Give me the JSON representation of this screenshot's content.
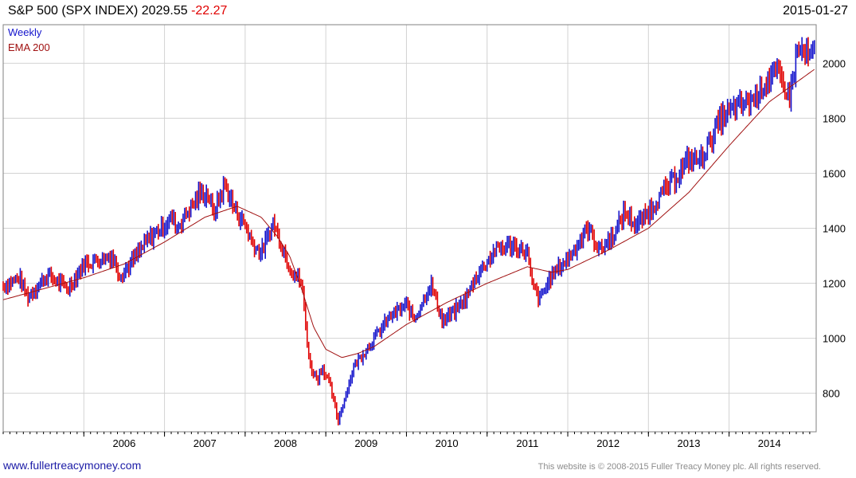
{
  "header": {
    "title": "S&P 500 (SPX INDEX)",
    "last": "2029.55",
    "change": "-22.27",
    "date": "2015-01-27"
  },
  "footer": {
    "site": "www.fullertreacymoney.com",
    "copyright": "This website is © 2008-2015 Fuller Treacy Money plc. All rights reserved."
  },
  "colors": {
    "up": "#1414cc",
    "down": "#e00000",
    "ema": "#a01010",
    "grid": "#d2d2d2",
    "frame": "#808080"
  },
  "chart_data": {
    "type": "line",
    "legend": [
      "Weekly",
      "EMA 200"
    ],
    "legend_placement": "top-left",
    "grid": true,
    "y_axis_side": "right",
    "ylim": [
      660,
      2140
    ],
    "y_ticks": [
      800,
      1000,
      1200,
      1400,
      1600,
      1800,
      2000
    ],
    "x_range": [
      2005.0,
      2015.08
    ],
    "x_ticks": [
      {
        "label": "2006",
        "x": 2006
      },
      {
        "label": "2007",
        "x": 2007
      },
      {
        "label": "2008",
        "x": 2008
      },
      {
        "label": "2009",
        "x": 2009
      },
      {
        "label": "2010",
        "x": 2010
      },
      {
        "label": "2011",
        "x": 2011
      },
      {
        "label": "2012",
        "x": 2012
      },
      {
        "label": "2013",
        "x": 2013
      },
      {
        "label": "2014",
        "x": 2014
      }
    ],
    "series": [
      {
        "name": "Weekly",
        "x": [
          2005.0,
          2005.2,
          2005.3,
          2005.55,
          2005.7,
          2005.8,
          2006.0,
          2006.35,
          2006.45,
          2006.55,
          2006.8,
          2007.1,
          2007.15,
          2007.45,
          2007.55,
          2007.6,
          2007.75,
          2007.85,
          2008.0,
          2008.1,
          2008.2,
          2008.35,
          2008.45,
          2008.55,
          2008.7,
          2008.8,
          2008.9,
          2008.95,
          2009.05,
          2009.15,
          2009.35,
          2009.5,
          2009.8,
          2010.0,
          2010.1,
          2010.3,
          2010.45,
          2010.6,
          2010.75,
          2010.85,
          2011.0,
          2011.1,
          2011.3,
          2011.5,
          2011.55,
          2011.65,
          2011.8,
          2012.0,
          2012.25,
          2012.4,
          2012.6,
          2012.7,
          2012.85,
          2012.95,
          2013.1,
          2013.35,
          2013.5,
          2013.65,
          2013.75,
          2013.9,
          2014.1,
          2014.3,
          2014.5,
          2014.6,
          2014.75,
          2014.85,
          2015.0,
          2015.07
        ],
        "values": [
          1190,
          1220,
          1150,
          1230,
          1200,
          1180,
          1270,
          1300,
          1230,
          1260,
          1360,
          1440,
          1400,
          1530,
          1520,
          1450,
          1560,
          1480,
          1410,
          1340,
          1310,
          1420,
          1340,
          1260,
          1200,
          900,
          850,
          900,
          830,
          700,
          900,
          960,
          1080,
          1120,
          1070,
          1200,
          1060,
          1100,
          1150,
          1220,
          1280,
          1320,
          1340,
          1310,
          1200,
          1140,
          1230,
          1290,
          1400,
          1320,
          1390,
          1460,
          1410,
          1440,
          1500,
          1590,
          1650,
          1650,
          1710,
          1800,
          1840,
          1870,
          1950,
          1960,
          1880,
          2050,
          2020,
          2040
        ]
      },
      {
        "name": "EMA 200",
        "x": [
          2005.0,
          2005.5,
          2006.0,
          2006.5,
          2007.0,
          2007.5,
          2007.9,
          2008.2,
          2008.4,
          2008.55,
          2008.7,
          2008.85,
          2009.0,
          2009.2,
          2009.4,
          2009.6,
          2010.0,
          2010.5,
          2011.0,
          2011.5,
          2011.8,
          2012.0,
          2012.5,
          2013.0,
          2013.5,
          2014.0,
          2014.5,
          2015.07
        ],
        "values": [
          1140,
          1180,
          1220,
          1270,
          1350,
          1440,
          1480,
          1440,
          1370,
          1300,
          1180,
          1040,
          960,
          930,
          945,
          970,
          1050,
          1130,
          1200,
          1260,
          1240,
          1250,
          1320,
          1400,
          1530,
          1700,
          1860,
          1980
        ]
      }
    ]
  }
}
